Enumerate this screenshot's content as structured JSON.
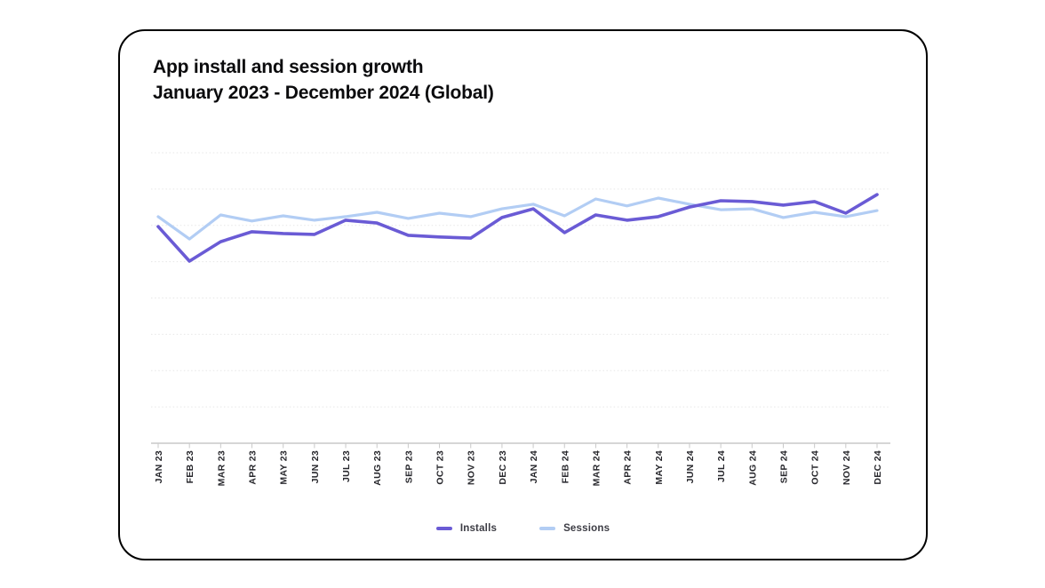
{
  "card": {
    "title_line1": "App install and session growth",
    "title_line2": "January 2023 - December 2024 (Global)"
  },
  "legend": {
    "items": [
      {
        "label": "Installs",
        "color": "#6a5bd5"
      },
      {
        "label": "Sessions",
        "color": "#b2cdf4"
      }
    ]
  },
  "chart_data": {
    "type": "line",
    "title": "App install and session growth",
    "subtitle": "January 2023 - December 2024 (Global)",
    "categories": [
      "JAN 23",
      "FEB 23",
      "MAR 23",
      "APR 23",
      "MAY 23",
      "JUN 23",
      "JUL 23",
      "AUG 23",
      "SEP 23",
      "OCT 23",
      "NOV 23",
      "DEC 23",
      "JAN 24",
      "FEB 24",
      "MAR 24",
      "APR 24",
      "MAY 24",
      "JUN 24",
      "JUL 24",
      "AUG 24",
      "SEP 24",
      "OCT 24",
      "NOV 24",
      "DEC 24"
    ],
    "series": [
      {
        "name": "Installs",
        "color": "#6a5bd5",
        "values": [
          74.6,
          62.7,
          69.4,
          72.8,
          72.2,
          71.9,
          76.8,
          75.8,
          71.6,
          71.0,
          70.6,
          77.7,
          80.7,
          72.5,
          78.6,
          76.8,
          78.0,
          81.3,
          83.5,
          83.2,
          82.0,
          83.2,
          79.2,
          85.6
        ]
      },
      {
        "name": "Sessions",
        "color": "#b2cdf4",
        "values": [
          78.0,
          70.3,
          78.6,
          76.5,
          78.3,
          76.8,
          78.0,
          79.5,
          77.4,
          79.2,
          78.0,
          80.7,
          82.3,
          78.3,
          84.1,
          81.7,
          84.4,
          82.3,
          80.4,
          80.7,
          77.7,
          79.5,
          78.0,
          80.1
        ]
      }
    ],
    "xlabel": "",
    "ylabel": "",
    "ylim": [
      0,
      100
    ],
    "y_axis_tick_labels": "none (y-axis unlabeled; values are relative: 0 = baseline axis, 100 = top gridline)",
    "gridlines": "8 horizontal dotted gridlines, solid baseline axis",
    "legend_position": "bottom-center",
    "axis_color": "#c9c9c9",
    "gridline_color": "#e7e7e7",
    "x_tick_label_color": "#26262b"
  }
}
